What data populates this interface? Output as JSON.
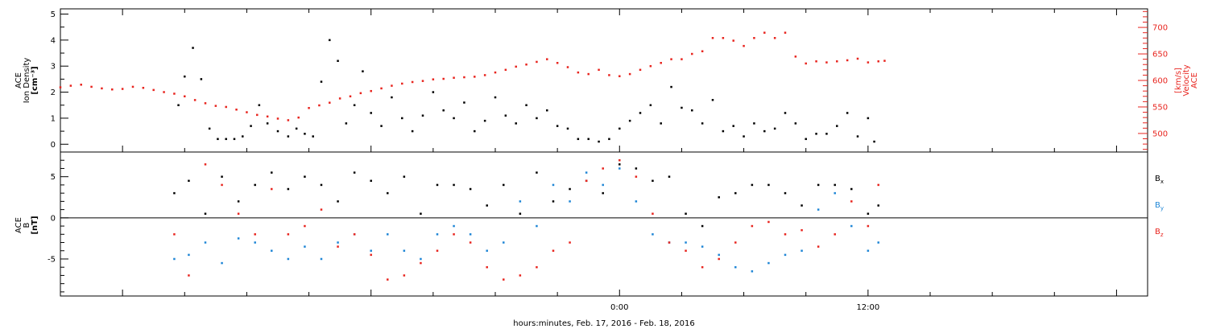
{
  "chart_data": [
    {
      "type": "scatter",
      "panel": "top",
      "ylabel_left_lines": [
        "ACE",
        "Ion Density",
        "[cm⁻³]"
      ],
      "ylabel_right_lines": [
        "ACE",
        "Velocity",
        "[km/s]"
      ],
      "left_axis": {
        "ylim": [
          -0.3,
          5.2
        ],
        "ticks": [
          "0",
          "1",
          "2",
          "3",
          "4",
          "5"
        ]
      },
      "right_axis": {
        "ylim": [
          465,
          735
        ],
        "ticks": [
          "500",
          "550",
          "600",
          "650",
          "700"
        ]
      },
      "x_hours_from_midnight_feb17": [
        -27,
        25.5
      ],
      "series": [
        {
          "axis": "left",
          "color": "#000000",
          "x": [
            -21.3,
            -21.0,
            -20.6,
            -20.2,
            -19.8,
            -19.4,
            -19.0,
            -18.6,
            -18.2,
            -17.8,
            -17.4,
            -17.0,
            -16.5,
            -16.0,
            -15.6,
            -15.2,
            -14.8,
            -14.4,
            -14.0,
            -13.6,
            -13.2,
            -12.8,
            -12.4,
            -12.0,
            -11.5,
            -11.0,
            -10.5,
            -10.0,
            -9.5,
            -9.0,
            -8.5,
            -8.0,
            -7.5,
            -7.0,
            -6.5,
            -6.0,
            -5.5,
            -5.0,
            -4.5,
            -4.0,
            -3.5,
            -3.0,
            -2.5,
            -2.0,
            -1.5,
            -1.0,
            -0.5,
            0.0,
            0.5,
            1.0,
            1.5,
            2.0,
            2.5,
            3.0,
            3.5,
            4.0,
            4.5,
            5.0,
            5.5,
            6.0,
            6.5,
            7.0,
            7.5,
            8.0,
            8.5,
            9.0,
            9.5,
            10.0,
            10.5,
            11.0,
            11.5,
            12.0,
            12.3
          ],
          "y": [
            1.5,
            2.6,
            3.7,
            2.5,
            0.6,
            0.2,
            0.2,
            0.2,
            0.3,
            0.7,
            1.5,
            0.8,
            0.5,
            0.3,
            0.6,
            0.4,
            0.3,
            2.4,
            4.0,
            3.2,
            0.8,
            1.5,
            2.8,
            1.2,
            0.7,
            1.8,
            1.0,
            0.5,
            1.1,
            2.0,
            1.3,
            1.0,
            1.6,
            0.5,
            0.9,
            1.8,
            1.1,
            0.8,
            1.5,
            1.0,
            1.3,
            0.7,
            0.6,
            0.2,
            0.2,
            0.1,
            0.2,
            0.6,
            0.9,
            1.2,
            1.5,
            0.8,
            2.2,
            1.4,
            1.3,
            0.8,
            1.7,
            0.5,
            0.7,
            0.3,
            0.8,
            0.5,
            0.6,
            1.2,
            0.8,
            0.2,
            0.4,
            0.4,
            0.7,
            1.2,
            0.3,
            1.0,
            0.1
          ]
        },
        {
          "axis": "right",
          "color": "#e8251f",
          "x": [
            -27.0,
            -26.5,
            -26.0,
            -25.5,
            -25.0,
            -24.5,
            -24.0,
            -23.5,
            -23.0,
            -22.5,
            -22.0,
            -21.5,
            -21.0,
            -20.5,
            -20.0,
            -19.5,
            -19.0,
            -18.5,
            -18.0,
            -17.5,
            -17.0,
            -16.5,
            -16.0,
            -15.5,
            -15.0,
            -14.5,
            -14.0,
            -13.5,
            -13.0,
            -12.5,
            -12.0,
            -11.5,
            -11.0,
            -10.5,
            -10.0,
            -9.5,
            -9.0,
            -8.5,
            -8.0,
            -7.5,
            -7.0,
            -6.5,
            -6.0,
            -5.5,
            -5.0,
            -4.5,
            -4.0,
            -3.5,
            -3.0,
            -2.5,
            -2.0,
            -1.5,
            -1.0,
            -0.5,
            0.0,
            0.5,
            1.0,
            1.5,
            2.0,
            2.5,
            3.0,
            3.5,
            4.0,
            4.5,
            5.0,
            5.5,
            6.0,
            6.5,
            7.0,
            7.5,
            8.0,
            8.5,
            9.0,
            9.5,
            10.0,
            10.5,
            11.0,
            11.5,
            12.0,
            12.5,
            12.8
          ],
          "y": [
            587,
            590,
            592,
            588,
            585,
            583,
            584,
            588,
            586,
            582,
            578,
            575,
            570,
            563,
            557,
            552,
            550,
            545,
            540,
            535,
            532,
            528,
            525,
            530,
            548,
            553,
            558,
            566,
            570,
            576,
            580,
            585,
            590,
            594,
            597,
            599,
            602,
            603,
            605,
            606,
            607,
            610,
            615,
            620,
            626,
            630,
            635,
            640,
            633,
            625,
            615,
            612,
            620,
            610,
            608,
            612,
            620,
            627,
            633,
            640,
            640,
            650,
            655,
            680,
            680,
            675,
            665,
            680,
            690,
            680,
            690,
            645,
            632,
            636,
            634,
            636,
            638,
            641,
            634,
            636,
            637
          ]
        }
      ]
    },
    {
      "type": "scatter",
      "panel": "bottom",
      "ylabel_lines": [
        "ACE",
        "B",
        "[nT]"
      ],
      "ylim": [
        -9.5,
        8.0
      ],
      "ticks": [
        "-5",
        "0",
        "5"
      ],
      "zero_line": true,
      "xlabel": "hours:minutes, Feb. 17, 2016 - Feb. 18, 2016",
      "x_tick_labels": [
        {
          "hour": 0,
          "label": "0:00"
        },
        {
          "hour": 12,
          "label": "12:00"
        }
      ],
      "legend": [
        {
          "name": "B",
          "sub": "x",
          "color": "#000000"
        },
        {
          "name": "B",
          "sub": "y",
          "color": "#1f86d6"
        },
        {
          "name": "B",
          "sub": "z",
          "color": "#e8251f"
        }
      ],
      "series": [
        {
          "name": "Bx",
          "color": "#000000",
          "x": [
            -21.5,
            -20.8,
            -20.0,
            -19.2,
            -18.4,
            -17.6,
            -16.8,
            -16.0,
            -15.2,
            -14.4,
            -13.6,
            -12.8,
            -12.0,
            -11.2,
            -10.4,
            -9.6,
            -8.8,
            -8.0,
            -7.2,
            -6.4,
            -5.6,
            -4.8,
            -4.0,
            -3.2,
            -2.4,
            -1.6,
            -0.8,
            0.0,
            0.8,
            1.6,
            2.4,
            3.2,
            4.0,
            4.8,
            5.6,
            6.4,
            7.2,
            8.0,
            8.8,
            9.6,
            10.4,
            11.2,
            12.0,
            12.5
          ],
          "y": [
            3.0,
            4.5,
            0.5,
            5.0,
            2.0,
            4.0,
            5.5,
            3.5,
            5.0,
            4.0,
            2.0,
            5.5,
            4.5,
            3.0,
            5.0,
            0.5,
            4.0,
            4.0,
            3.5,
            1.5,
            4.0,
            0.5,
            5.5,
            2.0,
            3.5,
            4.5,
            3.0,
            6.5,
            6.0,
            4.5,
            5.0,
            0.5,
            -1.0,
            2.5,
            3.0,
            4.0,
            4.0,
            3.0,
            1.5,
            4.0,
            4.0,
            3.5,
            0.5,
            1.5
          ]
        },
        {
          "name": "By",
          "color": "#1f86d6",
          "x": [
            -21.5,
            -20.8,
            -20.0,
            -19.2,
            -18.4,
            -17.6,
            -16.8,
            -16.0,
            -15.2,
            -14.4,
            -13.6,
            -12.8,
            -12.0,
            -11.2,
            -10.4,
            -9.6,
            -8.8,
            -8.0,
            -7.2,
            -6.4,
            -5.6,
            -4.8,
            -4.0,
            -3.2,
            -2.4,
            -1.6,
            -0.8,
            0.0,
            0.8,
            1.6,
            2.4,
            3.2,
            4.0,
            4.8,
            5.6,
            6.4,
            7.2,
            8.0,
            8.8,
            9.6,
            10.4,
            11.2,
            12.0,
            12.5
          ],
          "y": [
            -5.0,
            -4.5,
            -3.0,
            -5.5,
            -2.5,
            -3.0,
            -4.0,
            -5.0,
            -3.5,
            -5.0,
            -3.0,
            -2.0,
            -4.0,
            -2.0,
            -4.0,
            -5.0,
            -2.0,
            -1.0,
            -2.0,
            -4.0,
            -3.0,
            2.0,
            -1.0,
            4.0,
            2.0,
            5.5,
            4.0,
            6.0,
            2.0,
            -2.0,
            -3.0,
            -3.0,
            -3.5,
            -4.5,
            -6.0,
            -6.5,
            -5.5,
            -4.5,
            -4.0,
            1.0,
            3.0,
            -1.0,
            -4.0,
            -3.0
          ]
        },
        {
          "name": "Bz",
          "color": "#e8251f",
          "x": [
            -21.5,
            -20.8,
            -20.0,
            -19.2,
            -18.4,
            -17.6,
            -16.8,
            -16.0,
            -15.2,
            -14.4,
            -13.6,
            -12.8,
            -12.0,
            -11.2,
            -10.4,
            -9.6,
            -8.8,
            -8.0,
            -7.2,
            -6.4,
            -5.6,
            -4.8,
            -4.0,
            -3.2,
            -2.4,
            -1.6,
            -0.8,
            0.0,
            0.8,
            1.6,
            2.4,
            3.2,
            4.0,
            4.8,
            5.6,
            6.4,
            7.2,
            8.0,
            8.8,
            9.6,
            10.4,
            11.2,
            12.0,
            12.5
          ],
          "y": [
            -2.0,
            -7.0,
            6.5,
            4.0,
            0.5,
            -2.0,
            3.5,
            -2.0,
            -1.0,
            1.0,
            -3.5,
            -2.0,
            -4.5,
            -7.5,
            -7.0,
            -5.5,
            -4.0,
            -2.0,
            -3.0,
            -6.0,
            -7.5,
            -7.0,
            -6.0,
            -4.0,
            -3.0,
            4.5,
            6.0,
            7.0,
            5.0,
            0.5,
            -3.0,
            -4.0,
            -6.0,
            -5.0,
            -3.0,
            -1.0,
            -0.5,
            -2.0,
            -1.5,
            -3.5,
            -2.0,
            2.0,
            -1.0,
            4.0
          ]
        }
      ]
    }
  ]
}
